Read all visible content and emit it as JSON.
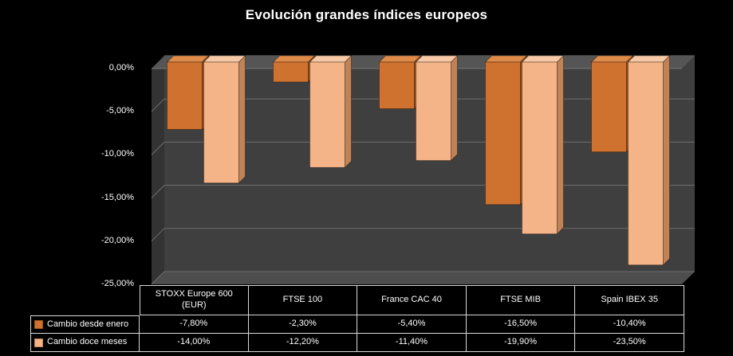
{
  "title": "Evolución grandes índices europeos",
  "chart_data": {
    "type": "bar",
    "style": "3d-column",
    "categories": [
      "STOXX Europe 600 (EUR)",
      "FTSE 100",
      "France CAC 40",
      "FTSE MIB",
      "Spain IBEX 35"
    ],
    "series": [
      {
        "name": "Cambio desde enero",
        "values": [
          -7.8,
          -2.3,
          -5.4,
          -16.5,
          -10.4
        ],
        "value_labels": [
          "-7,80%",
          "-2,30%",
          "-5,40%",
          "-16,50%",
          "-10,40%"
        ],
        "color_front": "#D0722F",
        "color_top": "#DE8A48",
        "color_side": "#99521D"
      },
      {
        "name": "Cambio doce meses",
        "values": [
          -14.0,
          -12.2,
          -11.4,
          -19.9,
          -23.5
        ],
        "value_labels": [
          "-14,00%",
          "-12,20%",
          "-11,40%",
          "-19,90%",
          "-23,50%"
        ],
        "color_front": "#F5B487",
        "color_top": "#F8C9A6",
        "color_side": "#C08257"
      }
    ],
    "y_axis": {
      "min": -25,
      "max": 0,
      "step": 5,
      "tick_labels": [
        "0,00%",
        "-5,00%",
        "-10,00%",
        "-15,00%",
        "-20,00%",
        "-25,00%"
      ]
    },
    "grid": true,
    "legend_position": "table-rows-left"
  },
  "colors": {
    "background": "#000000",
    "text": "#FFFFFF",
    "plot_wall": "#3F3F3F",
    "plot_wall_side": "#333333",
    "plot_floor": "#4D4D4D",
    "plot_top": "#555555",
    "gridline": "#6E6E6E",
    "table_border": "#D9D9D9"
  }
}
